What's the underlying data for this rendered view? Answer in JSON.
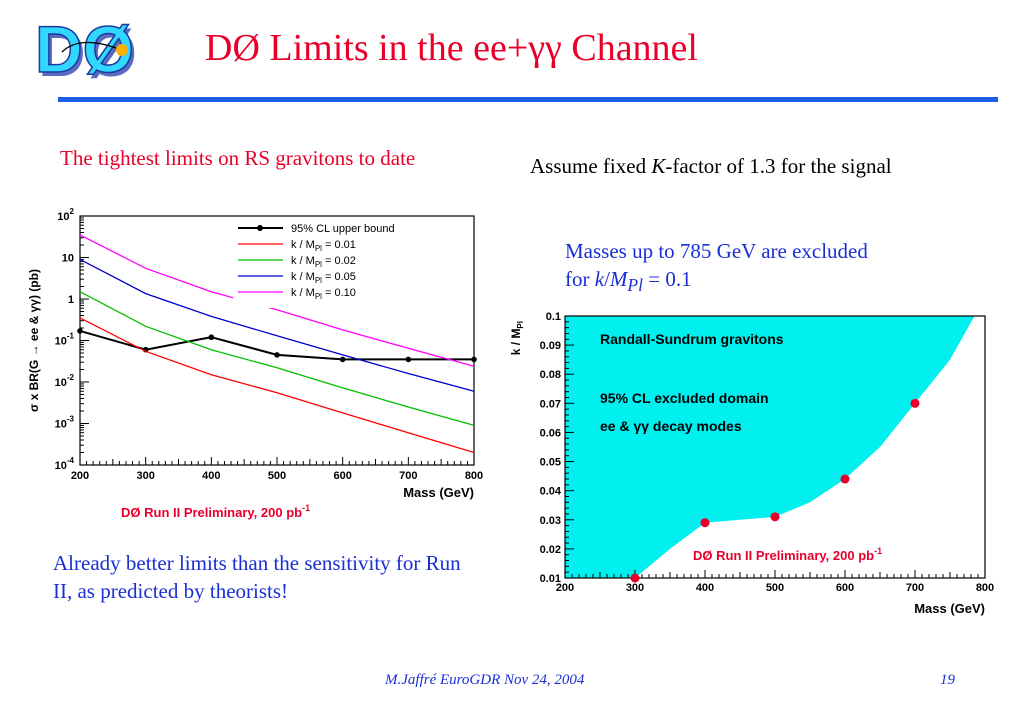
{
  "slide": {
    "title": "DØ Limits in the ee+γγ Channel",
    "logo_text": "DØ",
    "left_note": "The tightest limits on RS gravitons to date",
    "k_note_pre": "Assume fixed ",
    "k_note_k": "K",
    "k_note_post": "-factor of 1.3 for the signal",
    "mass_note_line1": "Masses up to 785 GeV are excluded",
    "mass_note_for": "for ",
    "mass_note_k": "k",
    "mass_note_slash": "/",
    "mass_note_m": "M",
    "mass_note_pl": "Pl",
    "mass_note_eq": " = 0.1",
    "better_note": "Already better limits than the sensitivity for Run II, as predicted by theorists!",
    "footer_author": "M.Jaffré     EuroGDR  Nov 24, 2004",
    "footer_page": "19"
  },
  "colors": {
    "title": "#e8002a",
    "rule": "#1a5fe6",
    "blue_text": "#1a2ed6",
    "excluded_fill": "#00f0f0",
    "preliminary": "#e8002a"
  },
  "chart_data": [
    {
      "type": "line",
      "yscale": "log",
      "xlabel": "Mass (GeV)",
      "ylabel": "σ x BR(G → ee & γγ) (pb)",
      "xlim": [
        200,
        800
      ],
      "ylim": [
        0.0001,
        100
      ],
      "xticks": [
        "200",
        "300",
        "400",
        "500",
        "600",
        "700",
        "800"
      ],
      "yticks": [
        {
          "base": "10",
          "exp": "-4"
        },
        {
          "base": "10",
          "exp": "-3"
        },
        {
          "base": "10",
          "exp": "-2"
        },
        {
          "base": "10",
          "exp": "-1"
        },
        {
          "base": "1",
          "exp": ""
        },
        {
          "base": "10",
          "exp": ""
        },
        {
          "base": "10",
          "exp": "2"
        }
      ],
      "legend_position": "top-right",
      "annotation": {
        "text": "DØ Run II Preliminary, 200 pb",
        "sup": "-1"
      },
      "series": [
        {
          "name": "95% CL upper bound",
          "color": "#000000",
          "markers": true,
          "points": [
            [
              200,
              0.17
            ],
            [
              300,
              0.06
            ],
            [
              400,
              0.12
            ],
            [
              500,
              0.045
            ],
            [
              600,
              0.035
            ],
            [
              700,
              0.035
            ],
            [
              800,
              0.035
            ]
          ]
        },
        {
          "name": "k / M",
          "sub": "Pl",
          "suffix": " = 0.01",
          "color": "#ff0000",
          "points": [
            [
              200,
              0.35
            ],
            [
              300,
              0.055
            ],
            [
              400,
              0.015
            ],
            [
              500,
              0.0055
            ],
            [
              600,
              0.0018
            ],
            [
              700,
              0.0006
            ],
            [
              800,
              0.0002
            ]
          ]
        },
        {
          "name": "k / M",
          "sub": "Pl",
          "suffix": " = 0.02",
          "color": "#00c000",
          "points": [
            [
              200,
              1.5
            ],
            [
              300,
              0.22
            ],
            [
              400,
              0.06
            ],
            [
              500,
              0.022
            ],
            [
              600,
              0.0072
            ],
            [
              700,
              0.0025
            ],
            [
              800,
              0.0009
            ]
          ]
        },
        {
          "name": "k / M",
          "sub": "Pl",
          "suffix": " = 0.05",
          "color": "#0000cc",
          "points": [
            [
              200,
              9
            ],
            [
              300,
              1.35
            ],
            [
              400,
              0.38
            ],
            [
              500,
              0.13
            ],
            [
              600,
              0.045
            ],
            [
              700,
              0.016
            ],
            [
              800,
              0.006
            ]
          ]
        },
        {
          "name": "k / M",
          "sub": "Pl",
          "suffix": " = 0.10",
          "color": "#ff00ff",
          "points": [
            [
              200,
              35
            ],
            [
              300,
              5.5
            ],
            [
              400,
              1.5
            ],
            [
              500,
              0.55
            ],
            [
              600,
              0.18
            ],
            [
              700,
              0.065
            ],
            [
              800,
              0.024
            ]
          ]
        }
      ]
    },
    {
      "type": "area",
      "xlabel": "Mass (GeV)",
      "ylabel": "k / M",
      "ylabel_sub": "Pl",
      "xlim": [
        200,
        800
      ],
      "ylim": [
        0.01,
        0.1
      ],
      "xticks": [
        "200",
        "300",
        "400",
        "500",
        "600",
        "700",
        "800"
      ],
      "yticks": [
        "0.01",
        "0.02",
        "0.03",
        "0.04",
        "0.05",
        "0.06",
        "0.07",
        "0.08",
        "0.09",
        "0.1"
      ],
      "labels": [
        "Randall-Sundrum gravitons",
        "95% CL excluded domain",
        "ee & γγ decay modes"
      ],
      "annotation": {
        "text": "DØ Run II Preliminary, 200 pb",
        "sup": "-1"
      },
      "boundary": [
        [
          200,
          0.01
        ],
        [
          300,
          0.01
        ],
        [
          350,
          0.02
        ],
        [
          400,
          0.029
        ],
        [
          450,
          0.03
        ],
        [
          500,
          0.031
        ],
        [
          550,
          0.036
        ],
        [
          600,
          0.044
        ],
        [
          650,
          0.055
        ],
        [
          700,
          0.07
        ],
        [
          750,
          0.085
        ],
        [
          785,
          0.1
        ]
      ],
      "points": [
        [
          300,
          0.01
        ],
        [
          400,
          0.029
        ],
        [
          500,
          0.031
        ],
        [
          600,
          0.044
        ],
        [
          700,
          0.07
        ]
      ]
    }
  ]
}
